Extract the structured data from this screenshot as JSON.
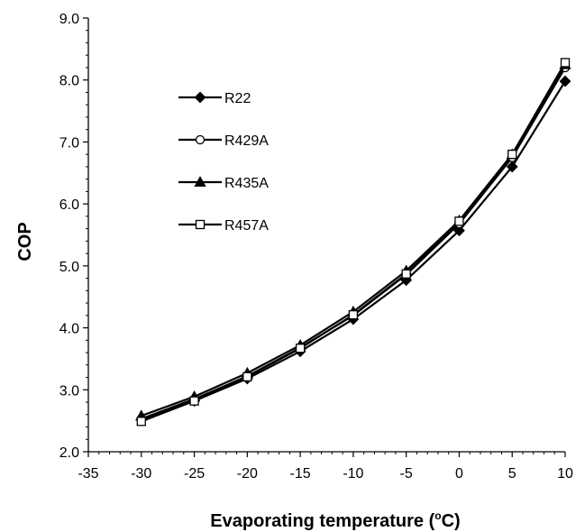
{
  "chart_data": {
    "type": "line",
    "xlabel": "Evaporating temperature (oC)",
    "ylabel": "COP",
    "xlim": [
      -35,
      10
    ],
    "ylim": [
      2.0,
      9.0
    ],
    "xticks": [
      "-35",
      "-30",
      "-25",
      "-20",
      "-15",
      "-10",
      "-5",
      "0",
      "5",
      "10"
    ],
    "yticks": [
      "2.0",
      "3.0",
      "4.0",
      "5.0",
      "6.0",
      "7.0",
      "8.0",
      "9.0"
    ],
    "grid": false,
    "legend_position": "upper-left",
    "x": [
      -30,
      -25,
      -20,
      -15,
      -10,
      -5,
      0,
      5,
      10
    ],
    "series": [
      {
        "name": "R22",
        "marker": "filled-diamond",
        "values": [
          2.52,
          2.82,
          3.18,
          3.62,
          4.14,
          4.77,
          5.57,
          6.6,
          7.98
        ]
      },
      {
        "name": "R429A",
        "marker": "open-circle",
        "values": [
          2.53,
          2.85,
          3.22,
          3.68,
          4.2,
          4.86,
          5.68,
          6.75,
          8.2
        ]
      },
      {
        "name": "R435A",
        "marker": "filled-triangle",
        "values": [
          2.58,
          2.89,
          3.27,
          3.72,
          4.26,
          4.92,
          5.73,
          6.8,
          8.25
        ]
      },
      {
        "name": "R457A",
        "marker": "open-square",
        "values": [
          2.49,
          2.82,
          3.21,
          3.67,
          4.21,
          4.87,
          5.72,
          6.8,
          8.28
        ]
      }
    ]
  }
}
